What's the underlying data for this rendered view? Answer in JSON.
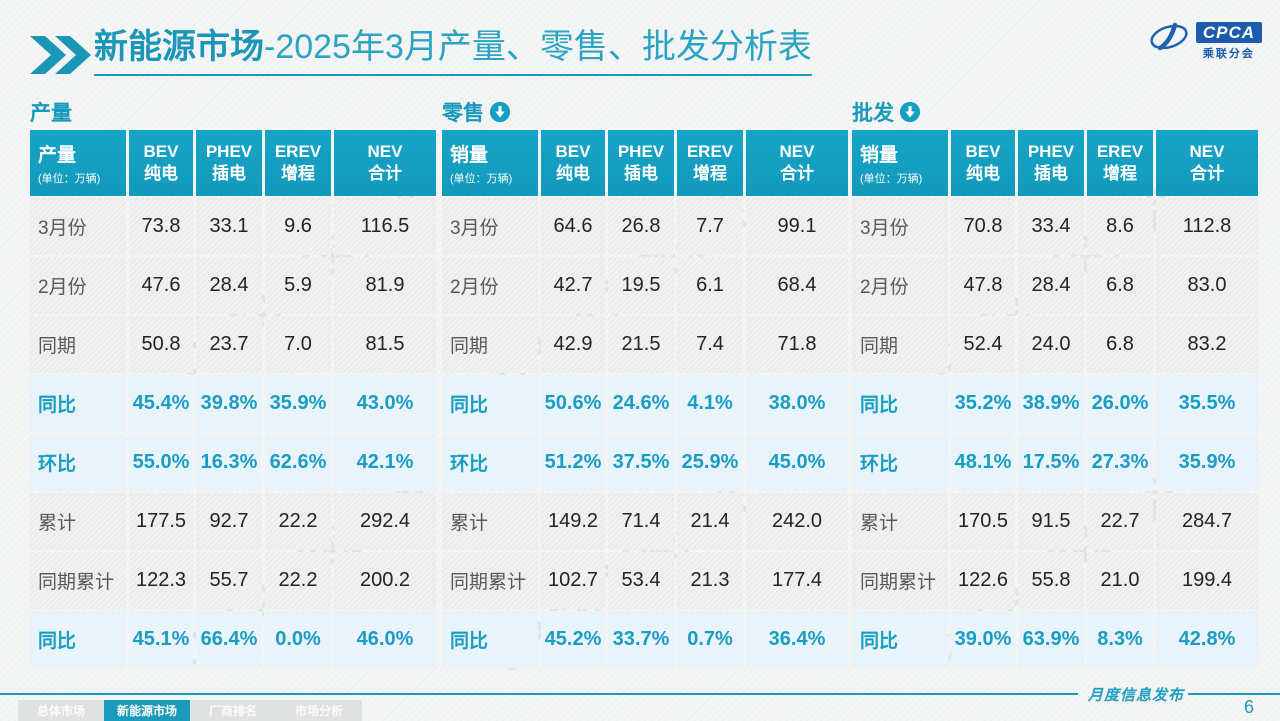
{
  "page": {
    "title_bold": "新能源市场",
    "title_rest": "-2025年3月产量、零售、批发分析表",
    "logo": {
      "name": "CPCA",
      "subtitle": "乘联分会"
    },
    "watermark": "CPCA 乘联分会",
    "footer_note": "月度信息发布",
    "page_number": "6"
  },
  "colors": {
    "accent_teal": "#189DBE",
    "header_cell_teal": "#14A0C2",
    "highlight_row_bg": "#E9F3FA",
    "normal_row_bg": "#ECECED",
    "logo_blue": "#1D5CAC"
  },
  "tables": [
    {
      "section_title": "产量",
      "header": {
        "label": "产量",
        "unit": "(单位：万辆)",
        "columns": [
          {
            "en": "BEV",
            "zh": "纯电"
          },
          {
            "en": "PHEV",
            "zh": "插电"
          },
          {
            "en": "EREV",
            "zh": "增程"
          },
          {
            "en": "NEV",
            "zh": "合计"
          }
        ]
      },
      "rows": [
        {
          "label": "3月份",
          "values": [
            "73.8",
            "33.1",
            "9.6",
            "116.5"
          ],
          "highlight": false
        },
        {
          "label": "2月份",
          "values": [
            "47.6",
            "28.4",
            "5.9",
            "81.9"
          ],
          "highlight": false
        },
        {
          "label": "同期",
          "values": [
            "50.8",
            "23.7",
            "7.0",
            "81.5"
          ],
          "highlight": false
        },
        {
          "label": "同比",
          "values": [
            "45.4%",
            "39.8%",
            "35.9%",
            "43.0%"
          ],
          "highlight": true
        },
        {
          "label": "环比",
          "values": [
            "55.0%",
            "16.3%",
            "62.6%",
            "42.1%"
          ],
          "highlight": true
        },
        {
          "label": "累计",
          "values": [
            "177.5",
            "92.7",
            "22.2",
            "292.4"
          ],
          "highlight": false
        },
        {
          "label": "同期累计",
          "values": [
            "122.3",
            "55.7",
            "22.2",
            "200.2"
          ],
          "highlight": false
        },
        {
          "label": "同比",
          "values": [
            "45.1%",
            "66.4%",
            "0.0%",
            "46.0%"
          ],
          "highlight": true
        }
      ]
    },
    {
      "section_title": "零售",
      "header": {
        "label": "销量",
        "unit": "(单位：万辆)",
        "columns": [
          {
            "en": "BEV",
            "zh": "纯电"
          },
          {
            "en": "PHEV",
            "zh": "插电"
          },
          {
            "en": "EREV",
            "zh": "增程"
          },
          {
            "en": "NEV",
            "zh": "合计"
          }
        ]
      },
      "rows": [
        {
          "label": "3月份",
          "values": [
            "64.6",
            "26.8",
            "7.7",
            "99.1"
          ],
          "highlight": false
        },
        {
          "label": "2月份",
          "values": [
            "42.7",
            "19.5",
            "6.1",
            "68.4"
          ],
          "highlight": false
        },
        {
          "label": "同期",
          "values": [
            "42.9",
            "21.5",
            "7.4",
            "71.8"
          ],
          "highlight": false
        },
        {
          "label": "同比",
          "values": [
            "50.6%",
            "24.6%",
            "4.1%",
            "38.0%"
          ],
          "highlight": true
        },
        {
          "label": "环比",
          "values": [
            "51.2%",
            "37.5%",
            "25.9%",
            "45.0%"
          ],
          "highlight": true
        },
        {
          "label": "累计",
          "values": [
            "149.2",
            "71.4",
            "21.4",
            "242.0"
          ],
          "highlight": false
        },
        {
          "label": "同期累计",
          "values": [
            "102.7",
            "53.4",
            "21.3",
            "177.4"
          ],
          "highlight": false
        },
        {
          "label": "同比",
          "values": [
            "45.2%",
            "33.7%",
            "0.7%",
            "36.4%"
          ],
          "highlight": true
        }
      ]
    },
    {
      "section_title": "批发",
      "header": {
        "label": "销量",
        "unit": "(单位：万辆)",
        "columns": [
          {
            "en": "BEV",
            "zh": "纯电"
          },
          {
            "en": "PHEV",
            "zh": "插电"
          },
          {
            "en": "EREV",
            "zh": "增程"
          },
          {
            "en": "NEV",
            "zh": "合计"
          }
        ]
      },
      "rows": [
        {
          "label": "3月份",
          "values": [
            "70.8",
            "33.4",
            "8.6",
            "112.8"
          ],
          "highlight": false
        },
        {
          "label": "2月份",
          "values": [
            "47.8",
            "28.4",
            "6.8",
            "83.0"
          ],
          "highlight": false
        },
        {
          "label": "同期",
          "values": [
            "52.4",
            "24.0",
            "6.8",
            "83.2"
          ],
          "highlight": false
        },
        {
          "label": "同比",
          "values": [
            "35.2%",
            "38.9%",
            "26.0%",
            "35.5%"
          ],
          "highlight": true
        },
        {
          "label": "环比",
          "values": [
            "48.1%",
            "17.5%",
            "27.3%",
            "35.9%"
          ],
          "highlight": true
        },
        {
          "label": "累计",
          "values": [
            "170.5",
            "91.5",
            "22.7",
            "284.7"
          ],
          "highlight": false
        },
        {
          "label": "同期累计",
          "values": [
            "122.6",
            "55.8",
            "21.0",
            "199.4"
          ],
          "highlight": false
        },
        {
          "label": "同比",
          "values": [
            "39.0%",
            "63.9%",
            "8.3%",
            "42.8%"
          ],
          "highlight": true
        }
      ]
    }
  ],
  "nav_tabs": [
    {
      "label": "总体市场",
      "active": false
    },
    {
      "label": "新能源市场",
      "active": true
    },
    {
      "label": "厂商排名",
      "active": false
    },
    {
      "label": "市场分析",
      "active": false
    }
  ]
}
